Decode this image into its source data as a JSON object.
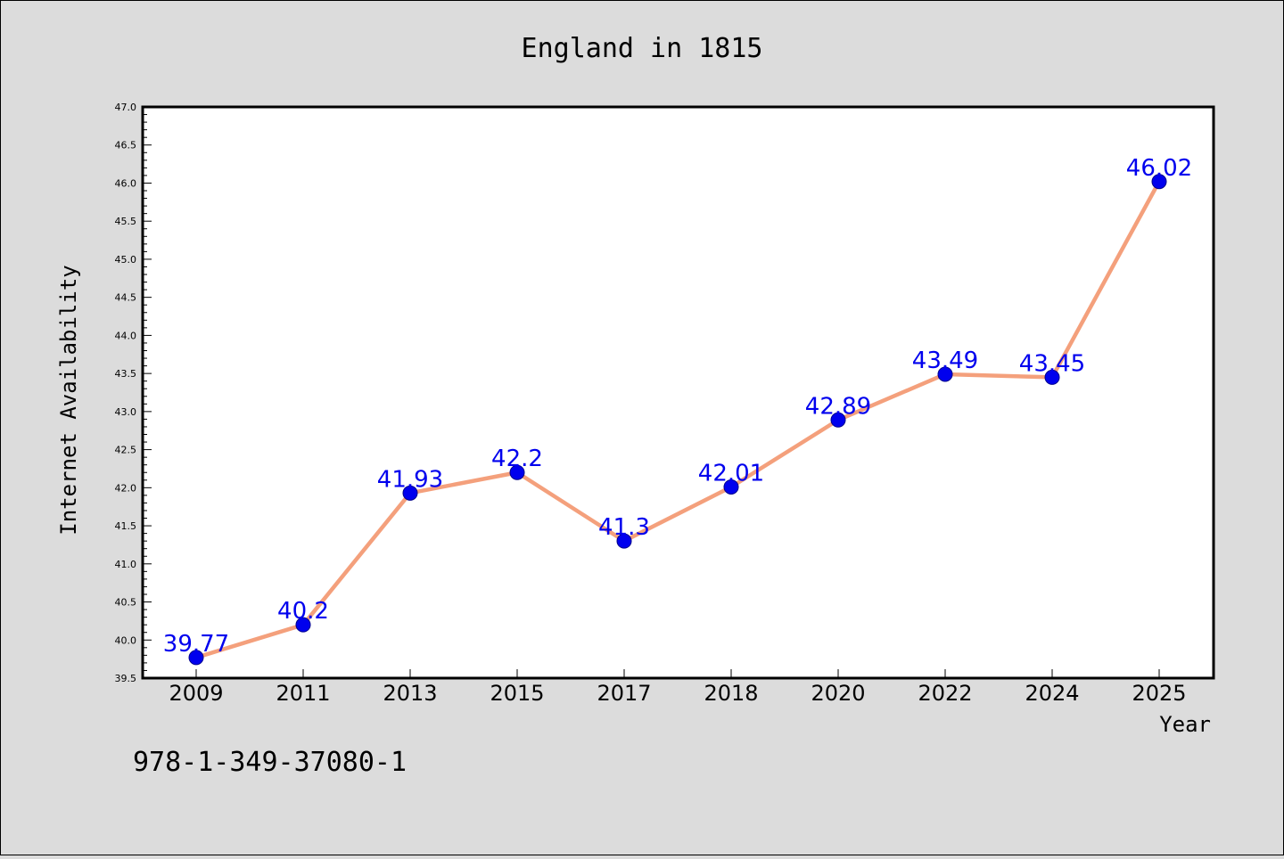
{
  "chart_data": {
    "type": "line",
    "title": "England in 1815",
    "xlabel": "Year",
    "ylabel": "Internet Availability",
    "categories": [
      "2009",
      "2011",
      "2013",
      "2015",
      "2017",
      "2018",
      "2020",
      "2022",
      "2024",
      "2025"
    ],
    "series": [
      {
        "values": [
          39.77,
          40.2,
          41.93,
          42.2,
          41.3,
          42.01,
          42.89,
          43.49,
          43.45,
          46.02
        ],
        "labels": [
          "39.77",
          "40.2",
          "41.93",
          "42.2",
          "41.3",
          "42.01",
          "42.89",
          "43.49",
          "43.45",
          "46.02"
        ],
        "line_color": "#f4a07c",
        "marker_color": "#0000ee",
        "label_color": "#0000ee"
      }
    ],
    "ylim": [
      39.5,
      47.0
    ],
    "yticks": [
      "39.5",
      "40.0",
      "40.5",
      "41.0",
      "41.5",
      "42.0",
      "42.5",
      "43.0",
      "43.5",
      "44.0",
      "44.5",
      "45.0",
      "45.5",
      "46.0",
      "46.5",
      "47.0"
    ],
    "grid": false,
    "legend": "none"
  },
  "footer": {
    "isbn": "978-1-349-37080-1"
  },
  "colors": {
    "background": "#dcdcdc",
    "plot_background": "#ffffff",
    "axes": "#000000"
  }
}
